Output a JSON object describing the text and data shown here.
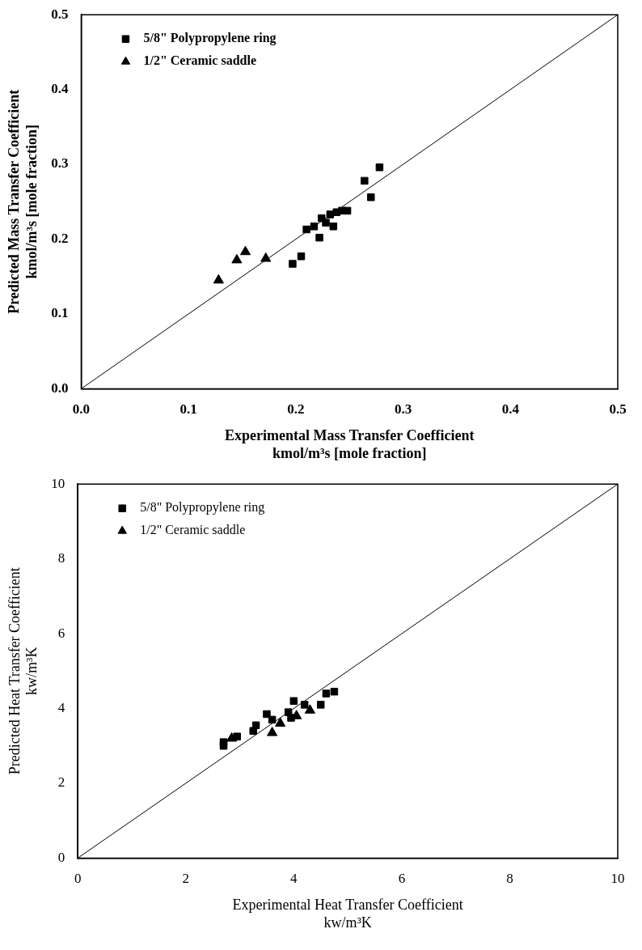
{
  "chart_data": [
    {
      "type": "scatter",
      "xlabel": "Experimental Mass Transfer Coefficient\nkmol/m³s [mole fraction]",
      "ylabel": "Predicted Mass Transfer Coefficient\nkmol/m³s [mole fraction]",
      "xlim": [
        0,
        0.5
      ],
      "ylim": [
        0,
        0.5
      ],
      "xticks": [
        {
          "value": 0,
          "label": "0.0"
        },
        0.1,
        0.2,
        0.3,
        0.4,
        0.5
      ],
      "yticks": [
        {
          "value": 0,
          "label": "0.0"
        },
        0.1,
        0.2,
        0.3,
        0.4,
        0.5
      ],
      "grid": false,
      "legend": "top left",
      "series": [
        {
          "name": "5/8\" Polypropylene ring",
          "color": "#000000",
          "marker": "square",
          "x": [
            0.197,
            0.205,
            0.21,
            0.217,
            0.222,
            0.224,
            0.228,
            0.232,
            0.235,
            0.238,
            0.243,
            0.248,
            0.264,
            0.27,
            0.278
          ],
          "values": [
            0.167,
            0.177,
            0.213,
            0.217,
            0.202,
            0.228,
            0.222,
            0.233,
            0.217,
            0.236,
            0.238,
            0.238,
            0.278,
            0.256,
            0.296
          ]
        },
        {
          "name": "1/2\" Ceramic saddle",
          "color": "#000000",
          "marker": "triangle",
          "x": [
            0.128,
            0.145,
            0.153,
            0.172
          ],
          "values": [
            0.145,
            0.172,
            0.183,
            0.174
          ]
        },
        {
          "type": "line",
          "color": "#000000",
          "marker": "none",
          "x": [
            0,
            0.5
          ],
          "values": [
            0,
            0.5
          ]
        }
      ]
    },
    {
      "type": "scatter",
      "xlabel": "Experimental Heat Transfer Coefficient\nkw/m³K",
      "ylabel": "Predicted Heat Transfer Coefficient\nkw/m³K",
      "xlim": [
        0,
        10
      ],
      "ylim": [
        0,
        10
      ],
      "xticks": [
        0,
        2,
        4,
        6,
        8,
        10
      ],
      "yticks": [
        0,
        2,
        4,
        6,
        8,
        10
      ],
      "grid": false,
      "legend": "top left",
      "series": [
        {
          "name": "5/8\" Polypropylene ring",
          "color": "#000000",
          "marker": "square",
          "x": [
            2.7,
            2.7,
            2.95,
            3.25,
            3.3,
            3.5,
            3.6,
            3.9,
            3.95,
            4.0,
            4.2,
            4.5,
            4.6,
            4.75
          ],
          "values": [
            3.1,
            3.0,
            3.25,
            3.4,
            3.55,
            3.85,
            3.7,
            3.9,
            3.75,
            4.2,
            4.1,
            4.1,
            4.4,
            4.45
          ]
        },
        {
          "name": "1/2\" Ceramic saddle",
          "color": "#000000",
          "marker": "triangle",
          "x": [
            2.85,
            3.6,
            3.75,
            4.05,
            4.3
          ],
          "values": [
            3.2,
            3.35,
            3.6,
            3.8,
            3.95
          ]
        },
        {
          "type": "line",
          "color": "#000000",
          "marker": "none",
          "x": [
            0,
            10
          ],
          "values": [
            0,
            10
          ]
        }
      ]
    }
  ]
}
